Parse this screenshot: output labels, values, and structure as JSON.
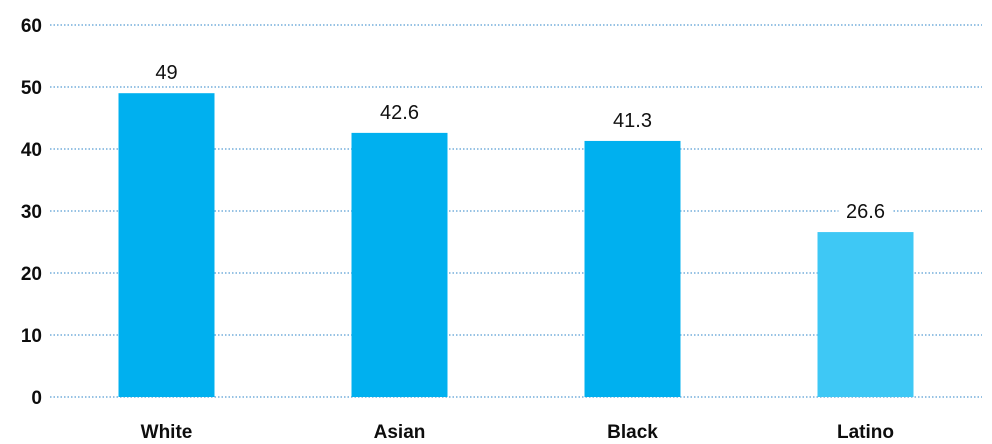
{
  "chart_data": {
    "type": "bar",
    "categories": [
      "White",
      "Asian",
      "Black",
      "Latino"
    ],
    "values": [
      49,
      42.6,
      41.3,
      26.6
    ],
    "data_labels": [
      "49",
      "42.6",
      "41.3",
      "26.6"
    ],
    "y_ticks": [
      "0",
      "10",
      "20",
      "30",
      "40",
      "50",
      "60"
    ],
    "ylim": [
      0,
      60
    ],
    "title": "",
    "xlabel": "",
    "ylabel": "",
    "grid": true,
    "grid_style": "dotted",
    "legend": "none",
    "colors": {
      "bar": "#00b0ef",
      "bar_last": "#3ec8f5",
      "grid": "#2c84c8",
      "text": "#0d0d0d"
    }
  }
}
